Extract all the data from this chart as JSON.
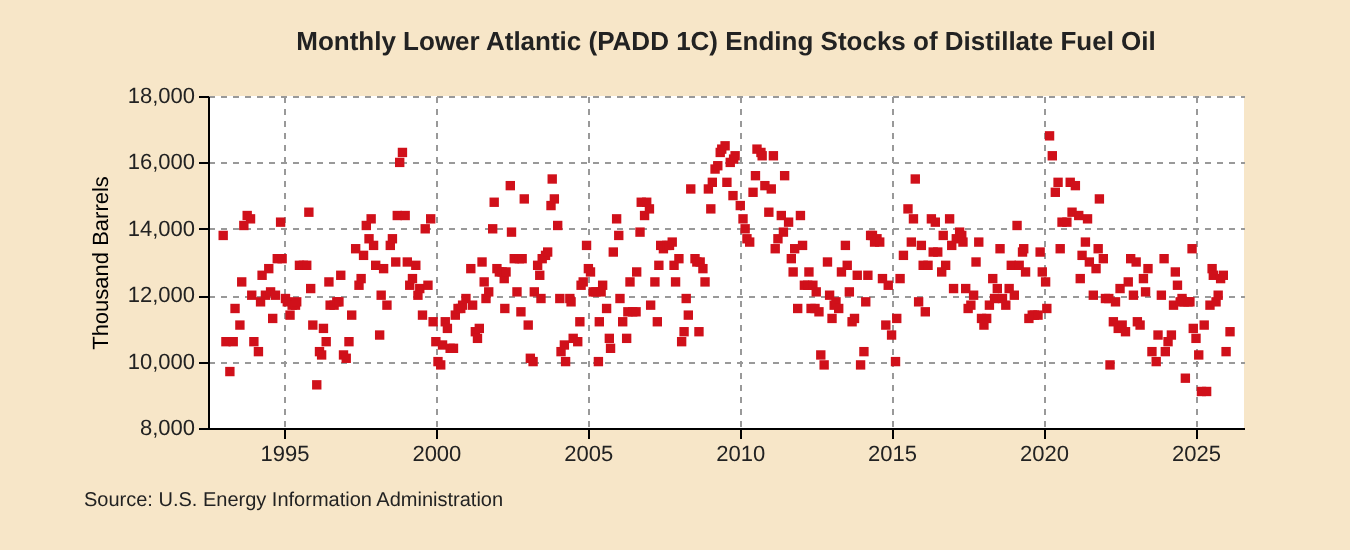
{
  "chart_data": {
    "type": "scatter",
    "title": "Monthly Lower Atlantic (PADD 1C) Ending Stocks of Distillate Fuel Oil",
    "ylabel": "Thousand Barrels",
    "annotations": [
      "Source: U.S. Energy Information Administration"
    ],
    "xlim": [
      1992.5,
      2026.6
    ],
    "xticks": [
      1995,
      2000,
      2005,
      2010,
      2015,
      2020,
      2025
    ],
    "ylim": [
      8000,
      18000
    ],
    "yticks": [
      {
        "value": 8000,
        "label": "8,000"
      },
      {
        "value": 10000,
        "label": "10,000"
      },
      {
        "value": 12000,
        "label": "12,000"
      },
      {
        "value": 14000,
        "label": "14,000"
      },
      {
        "value": 16000,
        "label": "16,000"
      },
      {
        "value": 18000,
        "label": "18,000"
      }
    ],
    "grid": true,
    "marker": "square",
    "series": [
      {
        "color": "#d0101a",
        "x": [
          1993.0,
          1993.09,
          1993.33,
          1993.22,
          1993.39,
          1993.55,
          1993.61,
          1993.79,
          1993.9,
          1993.68,
          1993.94,
          1994.01,
          1994.16,
          1994.23,
          1994.28,
          1994.39,
          1994.5,
          1994.56,
          1994.63,
          1994.72,
          1994.78,
          1994.89,
          1994.94,
          1995.05,
          1995.11,
          1995.2,
          1995.27,
          1995.38,
          1995.42,
          1995.51,
          1995.64,
          1995.75,
          1995.82,
          1995.88,
          1995.95,
          1996.08,
          1996.17,
          1996.24,
          1996.3,
          1996.39,
          1996.48,
          1996.52,
          1996.65,
          1996.74,
          1996.81,
          1996.87,
          1996.96,
          1997.05,
          1997.14,
          1997.23,
          1997.36,
          1997.47,
          1997.54,
          1997.62,
          1997.71,
          1997.8,
          1997.87,
          1997.95,
          1998.02,
          1998.15,
          1998.2,
          1998.28,
          1998.39,
          1998.5,
          1998.57,
          1998.68,
          1998.73,
          1998.81,
          1998.9,
          1998.99,
          1999.06,
          1999.14,
          1999.23,
          1999.34,
          1999.41,
          1999.47,
          1999.56,
          1999.65,
          1999.74,
          1999.83,
          1999.91,
          2000.0,
          2000.07,
          2000.16,
          2000.22,
          2000.31,
          2000.38,
          2000.47,
          2000.58,
          2000.64,
          2000.73,
          2000.82,
          2000.88,
          2000.99,
          2001.15,
          2001.21,
          2001.3,
          2001.37,
          2001.43,
          2001.52,
          2001.59,
          2001.65,
          2001.74,
          2001.87,
          2001.92,
          2002.01,
          2002.09,
          2002.18,
          2002.25,
          2002.31,
          2002.27,
          2002.45,
          2002.49,
          2002.58,
          2002.67,
          2002.75,
          2002.84,
          2002.8,
          2002.91,
          2003.04,
          2003.11,
          2003.2,
          2003.24,
          2003.35,
          2003.42,
          2003.46,
          2003.5,
          2003.61,
          2003.68,
          2003.79,
          2003.83,
          2003.9,
          2004.01,
          2004.08,
          2004.12,
          2004.23,
          2004.27,
          2004.41,
          2004.45,
          2004.52,
          2004.67,
          2004.74,
          2004.78,
          2004.85,
          2004.96,
          2005.02,
          2005.09,
          2005.18,
          2005.27,
          2005.35,
          2005.38,
          2005.44,
          2005.49,
          2005.62,
          2005.71,
          2005.75,
          2005.84,
          2005.95,
          2006.02,
          2006.06,
          2006.15,
          2006.28,
          2006.32,
          2006.39,
          2006.48,
          2006.59,
          2006.61,
          2006.72,
          2006.76,
          2006.87,
          2006.94,
          2007.03,
          2007.07,
          2007.21,
          2007.29,
          2007.34,
          2007.4,
          2007.49,
          2007.6,
          2007.69,
          2007.78,
          2007.84,
          2007.89,
          2008.0,
          2008.09,
          2008.17,
          2008.24,
          2008.31,
          2008.39,
          2008.53,
          2008.59,
          2008.66,
          2008.7,
          2008.79,
          2008.86,
          2008.97,
          2009.05,
          2009.1,
          2009.19,
          2009.28,
          2009.36,
          2009.41,
          2009.52,
          2009.58,
          2009.69,
          2009.8,
          2009.85,
          2009.78,
          2010.02,
          2010.11,
          2010.18,
          2010.24,
          2010.33,
          2010.44,
          2010.52,
          2010.57,
          2010.7,
          2010.74,
          2010.83,
          2010.96,
          2011.04,
          2011.11,
          2011.17,
          2011.26,
          2011.37,
          2011.44,
          2011.48,
          2011.61,
          2011.7,
          2011.76,
          2011.81,
          2011.91,
          2012.0,
          2012.07,
          2012.13,
          2012.24,
          2012.28,
          2012.35,
          2012.41,
          2012.48,
          2012.52,
          2012.61,
          2012.67,
          2012.78,
          2012.89,
          2012.96,
          2013.04,
          2013.11,
          2013.17,
          2013.26,
          2013.35,
          2013.48,
          2013.54,
          2013.61,
          2013.7,
          2013.78,
          2013.87,
          2013.98,
          2014.09,
          2014.15,
          2014.22,
          2014.31,
          2014.37,
          2014.44,
          2014.52,
          2014.61,
          2014.7,
          2014.81,
          2014.89,
          2015.0,
          2015.13,
          2015.17,
          2015.28,
          2015.39,
          2015.54,
          2015.65,
          2015.72,
          2015.78,
          2015.89,
          2015.98,
          2016.04,
          2016.11,
          2016.2,
          2016.31,
          2016.37,
          2016.44,
          2016.52,
          2016.65,
          2016.7,
          2016.78,
          2016.91,
          2016.98,
          2017.04,
          2017.13,
          2017.24,
          2017.31,
          2017.35,
          2017.44,
          2017.52,
          2017.61,
          2017.7,
          2017.78,
          2017.87,
          2017.96,
          2018.04,
          2018.13,
          2018.22,
          2018.33,
          2018.39,
          2018.48,
          2018.57,
          2018.65,
          2018.76,
          2018.87,
          2018.94,
          2019.04,
          2019.13,
          2019.2,
          2019.31,
          2019.35,
          2019.41,
          2019.52,
          2019.63,
          2019.7,
          2019.82,
          2019.89,
          2019.96,
          2020.07,
          2020.11,
          2020.2,
          2020.29,
          2020.39,
          2020.48,
          2020.55,
          2020.61,
          2020.77,
          2020.88,
          2020.94,
          2021.05,
          2021.16,
          2021.21,
          2021.27,
          2021.38,
          2021.45,
          2021.51,
          2021.64,
          2021.73,
          2021.8,
          2021.84,
          2021.97,
          2022.04,
          2022.15,
          2022.19,
          2022.3,
          2022.37,
          2022.46,
          2022.52,
          2022.59,
          2022.7,
          2022.79,
          2022.87,
          2022.96,
          2023.05,
          2023.09,
          2023.18,
          2023.29,
          2023.36,
          2023.44,
          2023.57,
          2023.71,
          2023.77,
          2023.88,
          2023.97,
          2024.01,
          2024.1,
          2024.21,
          2024.28,
          2024.34,
          2024.41,
          2024.5,
          2024.56,
          2024.63,
          2024.67,
          2024.76,
          2024.82,
          2024.89,
          2024.93,
          2025.02,
          2025.11,
          2025.2,
          2025.29,
          2025.37,
          2025.48,
          2025.55,
          2025.59,
          2025.68,
          2025.75,
          2025.83,
          2025.92,
          2026.01,
          2026.14
        ],
        "values": [
          13800,
          10600,
          10600,
          9700,
          11600,
          11100,
          12400,
          14400,
          14300,
          14100,
          12000,
          10600,
          10300,
          11800,
          12600,
          12000,
          12800,
          12100,
          11300,
          12000,
          13100,
          14200,
          13100,
          11900,
          11800,
          11400,
          11700,
          11700,
          11800,
          12900,
          12900,
          12900,
          14500,
          12200,
          11100,
          9300,
          10300,
          10200,
          11000,
          10600,
          12400,
          11700,
          11700,
          11800,
          11800,
          12600,
          10200,
          10100,
          10600,
          11400,
          13400,
          12300,
          12500,
          13200,
          14100,
          13700,
          14300,
          13500,
          12900,
          10800,
          12000,
          12800,
          11700,
          13500,
          13700,
          13000,
          14400,
          16000,
          16300,
          14400,
          13000,
          12300,
          12500,
          12900,
          12000,
          12200,
          11400,
          14000,
          12300,
          14300,
          11200,
          10600,
          10000,
          9900,
          10500,
          11200,
          11000,
          10400,
          10400,
          11400,
          11600,
          11600,
          11700,
          11900,
          12800,
          11700,
          10900,
          10700,
          11000,
          13000,
          12400,
          11900,
          12100,
          14000,
          14800,
          12800,
          12700,
          12700,
          12500,
          12700,
          11600,
          15300,
          13900,
          13100,
          12100,
          13100,
          13100,
          11500,
          14900,
          11100,
          10100,
          10000,
          12100,
          12900,
          12600,
          11900,
          13100,
          13200,
          13300,
          14700,
          15500,
          14900,
          14100,
          11900,
          10300,
          10500,
          10000,
          11900,
          11800,
          10700,
          10600,
          11200,
          12300,
          12400,
          13500,
          12800,
          12700,
          12100,
          12100,
          10000,
          11200,
          12100,
          12300,
          11600,
          10700,
          10400,
          13300,
          14300,
          13800,
          11900,
          11200,
          10700,
          11500,
          12400,
          11500,
          11500,
          12700,
          13900,
          14800,
          14400,
          14800,
          14600,
          11700,
          12400,
          11200,
          12900,
          13500,
          13400,
          13500,
          13500,
          13600,
          12900,
          12400,
          13100,
          10600,
          10900,
          11900,
          11400,
          15200,
          13100,
          13000,
          10900,
          13000,
          12800,
          12400,
          15200,
          14600,
          15400,
          15800,
          15900,
          16300,
          16400,
          16500,
          15400,
          16000,
          16100,
          16200,
          15000,
          14700,
          14300,
          14000,
          13700,
          13600,
          15100,
          15600,
          16400,
          16300,
          16200,
          15300,
          14500,
          15200,
          16200,
          13400,
          13700,
          14400,
          13900,
          15600,
          14200,
          13100,
          12700,
          13400,
          11600,
          14400,
          13500,
          12300,
          12300,
          12700,
          11600,
          12300,
          11600,
          12100,
          11500,
          10200,
          9900,
          13000,
          12000,
          11300,
          11700,
          11800,
          11600,
          12700,
          13500,
          12900,
          12100,
          11200,
          11300,
          12600,
          9900,
          10300,
          11800,
          12600,
          13800,
          13800,
          13600,
          13700,
          13600,
          12500,
          11100,
          12300,
          10800,
          10000,
          11300,
          12500,
          13200,
          14600,
          13600,
          14300,
          15500,
          11800,
          13500,
          12900,
          11500,
          12900,
          14300,
          13300,
          14200,
          13300,
          12700,
          13800,
          12900,
          14300,
          13500,
          12200,
          13700,
          13900,
          13800,
          13600,
          12200,
          11600,
          11700,
          12000,
          13000,
          13600,
          11300,
          11100,
          11300,
          11700,
          12500,
          11900,
          12200,
          13400,
          11900,
          11700,
          12200,
          12900,
          12000,
          14100,
          12900,
          13300,
          13400,
          12700,
          11300,
          11400,
          11400,
          11400,
          13300,
          12700,
          12400,
          11600,
          16800,
          16200,
          15100,
          15400,
          13400,
          14200,
          14200,
          15400,
          14500,
          15300,
          14400,
          12500,
          13200,
          13600,
          14300,
          13000,
          12000,
          12800,
          13400,
          14900,
          13100,
          11900,
          11900,
          9900,
          11200,
          11800,
          11000,
          12200,
          11100,
          10900,
          12400,
          13100,
          12000,
          13000,
          11200,
          11100,
          12500,
          12100,
          12800,
          10300,
          10000,
          10800,
          12000,
          13100,
          10300,
          10600,
          10800,
          11700,
          12700,
          12300,
          11800,
          11900,
          11800,
          9500,
          11800,
          11800,
          13400,
          11000,
          10700,
          10200,
          9100,
          11100,
          9100,
          11700,
          12800,
          12600,
          11800,
          12000,
          12500,
          12600,
          10300,
          10900
        ]
      }
    ]
  }
}
